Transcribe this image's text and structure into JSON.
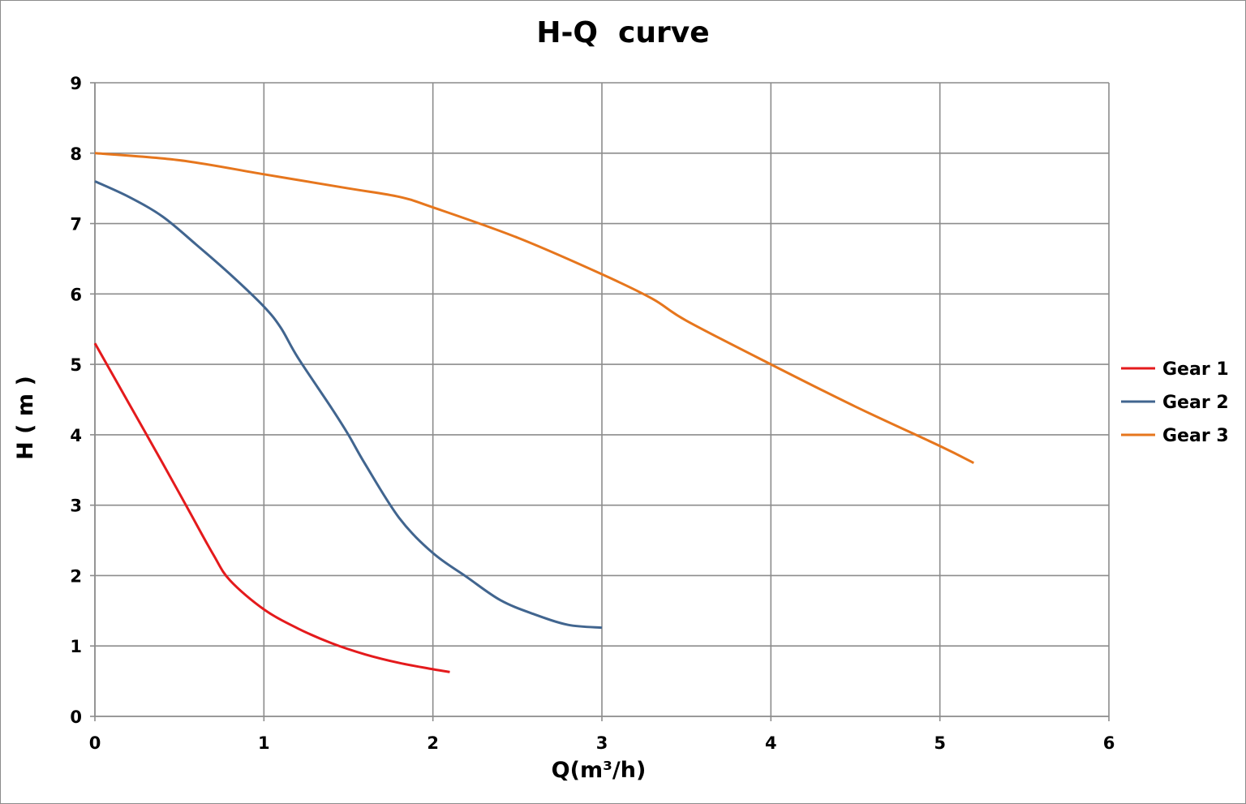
{
  "chart_data": {
    "type": "line",
    "title": "H-Q  curve",
    "xlabel": "Q(m³/h)",
    "ylabel": "H ( m )",
    "xlim": [
      0,
      6
    ],
    "ylim": [
      0,
      9
    ],
    "x_ticks": [
      "0",
      "1",
      "2",
      "3",
      "4",
      "5",
      "6"
    ],
    "y_ticks": [
      "0",
      "1",
      "2",
      "3",
      "4",
      "5",
      "6",
      "7",
      "8",
      "9"
    ],
    "grid": true,
    "legend_position": "right",
    "series": [
      {
        "name": "Gear 1",
        "color": "#e41a1c",
        "points": [
          [
            0,
            5.3
          ],
          [
            0.2,
            4.45
          ],
          [
            0.4,
            3.6
          ],
          [
            0.55,
            2.95
          ],
          [
            0.7,
            2.3
          ],
          [
            0.8,
            1.93
          ],
          [
            1.0,
            1.52
          ],
          [
            1.2,
            1.25
          ],
          [
            1.4,
            1.04
          ],
          [
            1.6,
            0.88
          ],
          [
            1.8,
            0.76
          ],
          [
            2.0,
            0.67
          ],
          [
            2.1,
            0.63
          ]
        ]
      },
      {
        "name": "Gear 2",
        "color": "#41658f",
        "points": [
          [
            0,
            7.6
          ],
          [
            0.2,
            7.38
          ],
          [
            0.4,
            7.1
          ],
          [
            0.6,
            6.7
          ],
          [
            0.8,
            6.28
          ],
          [
            1.0,
            5.82
          ],
          [
            1.1,
            5.52
          ],
          [
            1.2,
            5.1
          ],
          [
            1.4,
            4.38
          ],
          [
            1.5,
            4.0
          ],
          [
            1.6,
            3.58
          ],
          [
            1.8,
            2.82
          ],
          [
            2.0,
            2.32
          ],
          [
            2.2,
            1.98
          ],
          [
            2.4,
            1.65
          ],
          [
            2.6,
            1.45
          ],
          [
            2.8,
            1.3
          ],
          [
            3.0,
            1.26
          ]
        ]
      },
      {
        "name": "Gear 3",
        "color": "#e6761d",
        "points": [
          [
            0,
            8.0
          ],
          [
            0.5,
            7.9
          ],
          [
            1.0,
            7.7
          ],
          [
            1.5,
            7.5
          ],
          [
            1.8,
            7.38
          ],
          [
            2.0,
            7.23
          ],
          [
            2.5,
            6.8
          ],
          [
            3.0,
            6.28
          ],
          [
            3.3,
            5.93
          ],
          [
            3.5,
            5.62
          ],
          [
            4.0,
            5.0
          ],
          [
            4.5,
            4.4
          ],
          [
            5.0,
            3.84
          ],
          [
            5.2,
            3.6
          ]
        ]
      }
    ]
  }
}
